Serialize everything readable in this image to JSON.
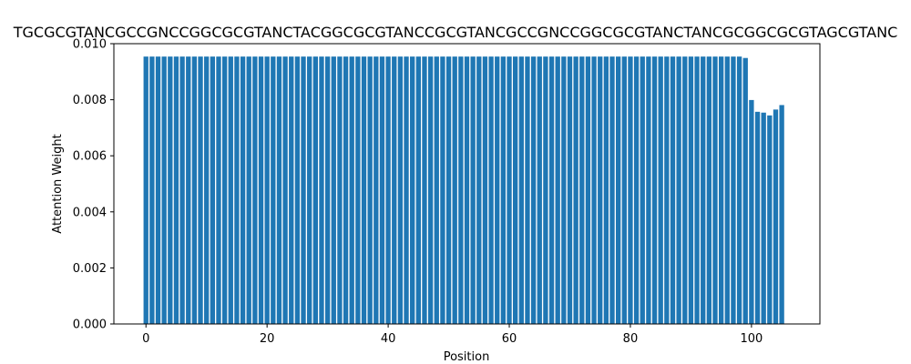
{
  "chart_data": {
    "type": "bar",
    "title": "TGCGCGTANCGCCGNCCGGCGCGTANCTACGGCGCGTANCCGCGTANCGCCGNCCGGCGCGTANCTANCGCGGCGCGTAGCGTANC",
    "xlabel": "Position",
    "ylabel": "Attention Weight",
    "xlim": [
      -5.3,
      111.3
    ],
    "ylim": [
      0,
      0.01
    ],
    "xticks": [
      0,
      20,
      40,
      60,
      80,
      100
    ],
    "yticks": [
      0.0,
      0.002,
      0.004,
      0.006,
      0.008,
      0.01
    ],
    "xtick_labels": [
      "0",
      "20",
      "40",
      "60",
      "80",
      "100"
    ],
    "ytick_labels": [
      "0.000",
      "0.002",
      "0.004",
      "0.006",
      "0.008",
      "0.010"
    ],
    "bar_color": "#1f77b4",
    "grid": false,
    "x_start": 0,
    "values": [
      0.00954,
      0.00954,
      0.00954,
      0.00954,
      0.00954,
      0.00954,
      0.00954,
      0.00954,
      0.00954,
      0.00954,
      0.00954,
      0.00954,
      0.00954,
      0.00954,
      0.00954,
      0.00954,
      0.00954,
      0.00954,
      0.00954,
      0.00954,
      0.00954,
      0.00954,
      0.00954,
      0.00954,
      0.00954,
      0.00954,
      0.00954,
      0.00954,
      0.00954,
      0.00954,
      0.00954,
      0.00954,
      0.00954,
      0.00954,
      0.00954,
      0.00954,
      0.00954,
      0.00954,
      0.00954,
      0.00954,
      0.00954,
      0.00954,
      0.00954,
      0.00954,
      0.00954,
      0.00954,
      0.00954,
      0.00954,
      0.00954,
      0.00954,
      0.00954,
      0.00954,
      0.00954,
      0.00954,
      0.00954,
      0.00954,
      0.00954,
      0.00954,
      0.00954,
      0.00954,
      0.00954,
      0.00954,
      0.00954,
      0.00954,
      0.00954,
      0.00954,
      0.00954,
      0.00954,
      0.00954,
      0.00954,
      0.00954,
      0.00954,
      0.00954,
      0.00954,
      0.00954,
      0.00954,
      0.00954,
      0.00954,
      0.00954,
      0.00954,
      0.00954,
      0.00954,
      0.00954,
      0.00954,
      0.00954,
      0.00954,
      0.00954,
      0.00954,
      0.00954,
      0.00954,
      0.00954,
      0.00954,
      0.00954,
      0.00954,
      0.00954,
      0.00954,
      0.00954,
      0.00954,
      0.00954,
      0.00949,
      0.00799,
      0.00757,
      0.00754,
      0.00744,
      0.00765,
      0.00781
    ]
  }
}
